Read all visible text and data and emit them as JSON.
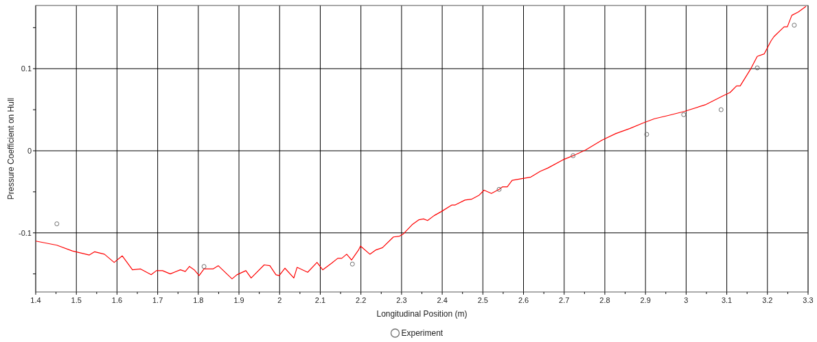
{
  "chart_data": {
    "type": "line",
    "xlabel": "Longitudinal Position (m)",
    "ylabel": "Pressure Coefficient on Hull",
    "xlim": [
      1.4,
      3.3
    ],
    "xticks": [
      1.4,
      {
        "value": 1.45,
        "label": null
      },
      1.5,
      {
        "value": 1.55,
        "label": null
      },
      1.6,
      {
        "value": 1.65,
        "label": null
      },
      1.7,
      {
        "value": 1.75,
        "label": null
      },
      1.8,
      {
        "value": 1.85,
        "label": null
      },
      1.9,
      {
        "value": 1.95,
        "label": null
      },
      2,
      {
        "value": 2.05,
        "label": null
      },
      2.1,
      {
        "value": 2.15,
        "label": null
      },
      2.2,
      {
        "value": 2.25,
        "label": null
      },
      2.3,
      {
        "value": 2.35,
        "label": null
      },
      2.4,
      {
        "value": 2.45,
        "label": null
      },
      2.5,
      {
        "value": 2.55,
        "label": null
      },
      2.6,
      {
        "value": 2.65,
        "label": null
      },
      2.7,
      {
        "value": 2.75,
        "label": null
      },
      2.8,
      {
        "value": 2.85,
        "label": null
      },
      2.9,
      {
        "value": 2.95,
        "label": null
      },
      3,
      {
        "value": 3.05,
        "label": null
      },
      3.1,
      {
        "value": 3.15,
        "label": null
      },
      3.2,
      {
        "value": 3.25,
        "label": null
      },
      3.3
    ],
    "ylim": [
      -0.172,
      0.177
    ],
    "yticks": [
      {
        "value": -0.15,
        "label": null
      },
      -0.1,
      {
        "value": -0.05,
        "label": null
      },
      0,
      {
        "value": 0.05,
        "label": null
      },
      0.1,
      {
        "value": 0.15,
        "label": null
      }
    ],
    "grid": true,
    "legend": "bottom",
    "series": [
      {
        "color": "#ff0000",
        "marker": "none",
        "line_style": "solid",
        "x": [
          1.4,
          1.452,
          1.49,
          1.532,
          1.545,
          1.569,
          1.593,
          1.613,
          1.638,
          1.658,
          1.684,
          1.697,
          1.712,
          1.731,
          1.756,
          1.768,
          1.778,
          1.79,
          1.802,
          1.814,
          1.836,
          1.849,
          1.883,
          1.895,
          1.917,
          1.93,
          1.962,
          1.976,
          1.991,
          1.999,
          2.013,
          2.035,
          2.043,
          2.069,
          2.092,
          2.106,
          2.128,
          2.143,
          2.153,
          2.165,
          2.177,
          2.194,
          2.199,
          2.222,
          2.236,
          2.253,
          2.28,
          2.295,
          2.305,
          2.326,
          2.343,
          2.354,
          2.364,
          2.38,
          2.398,
          2.424,
          2.432,
          2.456,
          2.472,
          2.491,
          2.503,
          2.521,
          2.54,
          2.548,
          2.56,
          2.572,
          2.596,
          2.618,
          2.641,
          2.66,
          2.697,
          2.722,
          2.753,
          2.793,
          2.827,
          2.861,
          2.895,
          2.922,
          2.956,
          2.996,
          3.047,
          3.091,
          3.108,
          3.124,
          3.133,
          3.158,
          3.175,
          3.192,
          3.209,
          3.216,
          3.241,
          3.249,
          3.26,
          3.276,
          3.295
        ],
        "values": [
          -0.11,
          -0.115,
          -0.122,
          -0.127,
          -0.123,
          -0.126,
          -0.136,
          -0.128,
          -0.145,
          -0.144,
          -0.151,
          -0.146,
          -0.146,
          -0.15,
          -0.145,
          -0.147,
          -0.141,
          -0.145,
          -0.152,
          -0.144,
          -0.144,
          -0.14,
          -0.156,
          -0.151,
          -0.146,
          -0.155,
          -0.139,
          -0.14,
          -0.151,
          -0.152,
          -0.143,
          -0.155,
          -0.142,
          -0.148,
          -0.136,
          -0.145,
          -0.137,
          -0.131,
          -0.131,
          -0.126,
          -0.133,
          -0.121,
          -0.116,
          -0.126,
          -0.121,
          -0.118,
          -0.105,
          -0.104,
          -0.101,
          -0.09,
          -0.084,
          -0.083,
          -0.085,
          -0.079,
          -0.074,
          -0.066,
          -0.066,
          -0.06,
          -0.059,
          -0.054,
          -0.048,
          -0.052,
          -0.047,
          -0.044,
          -0.044,
          -0.036,
          -0.034,
          -0.032,
          -0.025,
          -0.021,
          -0.011,
          -0.006,
          0.001,
          0.013,
          0.021,
          0.027,
          0.034,
          0.039,
          0.043,
          0.048,
          0.056,
          0.067,
          0.071,
          0.079,
          0.079,
          0.099,
          0.115,
          0.118,
          0.134,
          0.139,
          0.151,
          0.151,
          0.165,
          0.169,
          0.176
        ]
      },
      {
        "type": "scatter",
        "name": "Experiment",
        "color": "#707070",
        "marker": "circle",
        "x": [
          1.452,
          1.814,
          2.179,
          2.54,
          2.722,
          2.903,
          2.994,
          3.086,
          3.175,
          3.266
        ],
        "values": [
          -0.089,
          -0.141,
          -0.138,
          -0.047,
          -0.006,
          0.02,
          0.044,
          0.05,
          0.101,
          0.153
        ]
      }
    ]
  }
}
